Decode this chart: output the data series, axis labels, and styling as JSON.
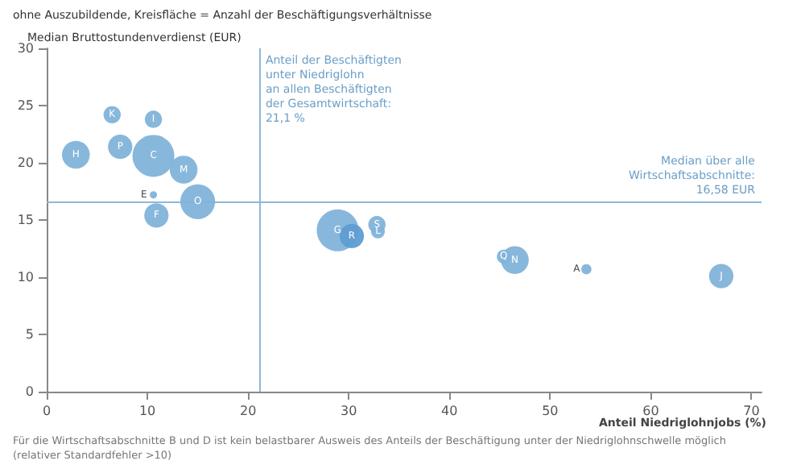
{
  "chart_data": {
    "type": "bubble",
    "title": "ohne Auszubildende, Kreisfläche = Anzahl der Beschäftigungsverhältnisse",
    "xlabel": "Anteil Niedriglohnjobs (%)",
    "ylabel": "Median Bruttostundenverdienst (EUR)",
    "x": [
      2.9,
      6.5,
      10.6,
      7.3,
      10.6,
      13.6,
      10.6,
      15.0,
      10.9,
      28.9,
      30.3,
      32.8,
      32.9,
      45.4,
      46.5,
      53.6,
      67.0
    ],
    "values": [
      20.7,
      24.2,
      23.8,
      21.4,
      20.6,
      19.4,
      17.2,
      16.6,
      15.4,
      14.1,
      13.6,
      14.6,
      14.0,
      11.8,
      11.5,
      10.7,
      10.1
    ],
    "sizes": [
      0.44,
      0.17,
      0.17,
      0.34,
      1,
      0.44,
      0.03,
      0.69,
      0.34,
      1,
      0.34,
      0.17,
      0.11,
      0.11,
      0.44,
      0.06,
      0.34
    ],
    "colors": [
      "#82b3da",
      "#82b3da",
      "#82b3da",
      "#82b3da",
      "#82b3da",
      "#82b3da",
      "#82b3da",
      "#82b3da",
      "#82b3da",
      "#82b3da",
      "#5f9dd1",
      "#82b3da",
      "#82b3da",
      "#82b3da",
      "#82b3da",
      "#82b3da",
      "#82b3da"
    ],
    "xlim": [
      0,
      71
    ],
    "xticks": [
      0,
      10,
      20,
      30,
      40,
      50,
      60,
      70
    ],
    "ylim": [
      0,
      30
    ],
    "yticks": [
      0,
      5,
      10,
      15,
      20,
      25,
      30
    ],
    "grid": false,
    "ref_lines": [
      {
        "axis": "x",
        "value": 21.1,
        "label": "Anteil der Beschäftigten\nunter Niedriglohn\nan allen Beschäftigten\nder Gesamtwirtschaft:\n21,1 %",
        "color": "#8fb8d8"
      },
      {
        "axis": "y",
        "value": 16.58,
        "label": "Median über alle\nWirtschaftsabschnitte:\n16,58 EUR",
        "color": "#8fb8d8"
      }
    ],
    "annotations": [
      {
        "text": "H",
        "x": 2.9,
        "y": 20.7
      },
      {
        "text": "K",
        "x": 6.5,
        "y": 24.2
      },
      {
        "text": "I",
        "x": 10.6,
        "y": 23.8
      },
      {
        "text": "P",
        "x": 7.3,
        "y": 21.4
      },
      {
        "text": "C",
        "x": 10.6,
        "y": 20.6
      },
      {
        "text": "M",
        "x": 13.6,
        "y": 19.4
      },
      {
        "text": "E",
        "x": 10.6,
        "y": 17.2
      },
      {
        "text": "O",
        "x": 15.0,
        "y": 16.6
      },
      {
        "text": "F",
        "x": 10.9,
        "y": 15.4
      },
      {
        "text": "G",
        "x": 28.9,
        "y": 14.1
      },
      {
        "text": "R",
        "x": 30.3,
        "y": 13.6
      },
      {
        "text": "S",
        "x": 32.8,
        "y": 14.6
      },
      {
        "text": "L",
        "x": 32.9,
        "y": 14.0
      },
      {
        "text": "Q",
        "x": 45.4,
        "y": 11.8
      },
      {
        "text": "N",
        "x": 46.5,
        "y": 11.5
      },
      {
        "text": "A",
        "x": 53.6,
        "y": 10.7
      },
      {
        "text": "J",
        "x": 67.0,
        "y": 10.1
      },
      "Für die Wirtschaftsabschnitte B und D ist kein belastbarer Ausweis des Anteils der Beschäftigung unter der Niedriglohnschwelle möglich (relativer Standardfehler >10)"
    ]
  }
}
